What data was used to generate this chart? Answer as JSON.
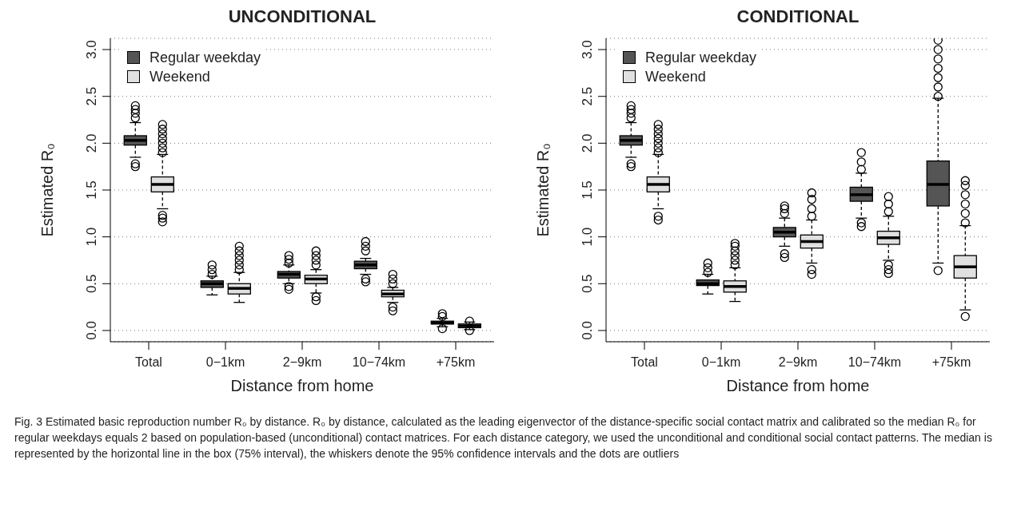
{
  "chart_data": [
    {
      "type": "box",
      "title": "UNCONDITIONAL",
      "xlabel": "Distance from home",
      "ylabel": "Estimated R₀",
      "categories": [
        "Total",
        "0−1km",
        "2−9km",
        "10−74km",
        "+75km"
      ],
      "ylim": [
        -0.12,
        3.12
      ],
      "yticks": [
        {
          "value": 0,
          "label": "0.0"
        },
        0.5,
        {
          "value": 1,
          "label": "1.0"
        },
        1.5,
        {
          "value": 2,
          "label": "2.0"
        },
        2.5,
        {
          "value": 3,
          "label": "3.0"
        }
      ],
      "grid": "y",
      "legend": "top left",
      "annotations": [
        "Fig. 3 Estimated basic reproduction number R₀ by distance. R₀ by distance, calculated as the leading eigenvector of the distance-specific social contact matrix and calibrated so the median R₀ for regular weekdays equals 2 based on population-based (unconditional) contact matrices. For each distance category, we used the unconditional and conditional social contact patterns. The median is represented by the horizontal line in the box (75% interval), the whiskers denote the 95% confidence intervals and the dots are outliers"
      ],
      "series": [
        {
          "name": "Regular weekday",
          "color": "#555555",
          "boxes": [
            {
              "low": 1.85,
              "q1": 1.98,
              "median": 2.03,
              "q3": 2.08,
              "high": 2.22,
              "outliers": [
                1.75,
                1.78,
                2.27,
                2.32,
                2.36,
                2.4
              ]
            },
            {
              "low": 0.38,
              "q1": 0.46,
              "median": 0.5,
              "q3": 0.53,
              "high": 0.58,
              "outliers": [
                0.6,
                0.65,
                0.7
              ]
            },
            {
              "low": 0.5,
              "q1": 0.56,
              "median": 0.6,
              "q3": 0.63,
              "high": 0.7,
              "outliers": [
                0.44,
                0.47,
                0.72,
                0.76,
                0.8
              ]
            },
            {
              "low": 0.6,
              "q1": 0.66,
              "median": 0.7,
              "q3": 0.74,
              "high": 0.77,
              "outliers": [
                0.52,
                0.55,
                0.85,
                0.9,
                0.95
              ]
            },
            {
              "low": 0.04,
              "q1": 0.07,
              "median": 0.08,
              "q3": 0.1,
              "high": 0.13,
              "outliers": [
                0.02,
                0.15,
                0.18
              ]
            }
          ]
        },
        {
          "name": "Weekend",
          "color": "#e0e0e0",
          "boxes": [
            {
              "low": 1.3,
              "q1": 1.48,
              "median": 1.56,
              "q3": 1.64,
              "high": 1.88,
              "outliers": [
                1.16,
                1.2,
                1.23,
                1.9,
                1.95,
                2.0,
                2.05,
                2.1,
                2.15,
                2.2
              ]
            },
            {
              "low": 0.3,
              "q1": 0.39,
              "median": 0.45,
              "q3": 0.5,
              "high": 0.62,
              "outliers": [
                0.65,
                0.7,
                0.75,
                0.8,
                0.85,
                0.9
              ]
            },
            {
              "low": 0.4,
              "q1": 0.5,
              "median": 0.55,
              "q3": 0.59,
              "high": 0.65,
              "outliers": [
                0.32,
                0.36,
                0.7,
                0.75,
                0.8,
                0.85
              ]
            },
            {
              "low": 0.3,
              "q1": 0.36,
              "median": 0.39,
              "q3": 0.43,
              "high": 0.46,
              "outliers": [
                0.21,
                0.25,
                0.5,
                0.55,
                0.6
              ]
            },
            {
              "low": 0.01,
              "q1": 0.03,
              "median": 0.05,
              "q3": 0.07,
              "high": 0.09,
              "outliers": [
                0.0,
                0.1
              ]
            }
          ]
        }
      ]
    },
    {
      "type": "box",
      "title": "CONDITIONAL",
      "xlabel": "Distance from home",
      "ylabel": "Estimated R₀",
      "categories": [
        "Total",
        "0−1km",
        "2−9km",
        "10−74km",
        "+75km"
      ],
      "ylim": [
        -0.12,
        3.12
      ],
      "yticks": [
        {
          "value": 0,
          "label": "0.0"
        },
        0.5,
        {
          "value": 1,
          "label": "1.0"
        },
        1.5,
        {
          "value": 2,
          "label": "2.0"
        },
        2.5,
        {
          "value": 3,
          "label": "3.0"
        }
      ],
      "grid": "y",
      "legend": "top left",
      "series": [
        {
          "name": "Regular weekday",
          "color": "#555555",
          "boxes": [
            {
              "low": 1.85,
              "q1": 1.98,
              "median": 2.03,
              "q3": 2.08,
              "high": 2.22,
              "outliers": [
                1.75,
                1.78,
                2.27,
                2.32,
                2.36,
                2.4
              ]
            },
            {
              "low": 0.39,
              "q1": 0.48,
              "median": 0.5,
              "q3": 0.54,
              "high": 0.6,
              "outliers": [
                0.62,
                0.67,
                0.72
              ]
            },
            {
              "low": 0.9,
              "q1": 1.0,
              "median": 1.05,
              "q3": 1.1,
              "high": 1.2,
              "outliers": [
                0.78,
                0.82,
                1.25,
                1.3,
                1.33
              ]
            },
            {
              "low": 1.2,
              "q1": 1.38,
              "median": 1.45,
              "q3": 1.53,
              "high": 1.68,
              "outliers": [
                1.11,
                1.15,
                1.72,
                1.8,
                1.9
              ]
            },
            {
              "low": 0.72,
              "q1": 1.33,
              "median": 1.56,
              "q3": 1.81,
              "high": 2.48,
              "outliers": [
                0.64,
                2.5,
                2.6,
                2.7,
                2.8,
                2.9,
                3.0,
                3.1
              ]
            }
          ]
        },
        {
          "name": "Weekend",
          "color": "#e0e0e0",
          "boxes": [
            {
              "low": 1.3,
              "q1": 1.48,
              "median": 1.56,
              "q3": 1.64,
              "high": 1.88,
              "outliers": [
                1.18,
                1.22,
                1.9,
                1.95,
                2.0,
                2.05,
                2.1,
                2.15,
                2.2
              ]
            },
            {
              "low": 0.31,
              "q1": 0.41,
              "median": 0.47,
              "q3": 0.53,
              "high": 0.67,
              "outliers": [
                0.7,
                0.75,
                0.8,
                0.85,
                0.9,
                0.93
              ]
            },
            {
              "low": 0.72,
              "q1": 0.88,
              "median": 0.95,
              "q3": 1.02,
              "high": 1.18,
              "outliers": [
                0.6,
                0.65,
                1.22,
                1.3,
                1.4,
                1.47
              ]
            },
            {
              "low": 0.75,
              "q1": 0.92,
              "median": 0.99,
              "q3": 1.06,
              "high": 1.22,
              "outliers": [
                0.61,
                0.65,
                0.7,
                1.27,
                1.35,
                1.43
              ]
            },
            {
              "low": 0.22,
              "q1": 0.56,
              "median": 0.68,
              "q3": 0.8,
              "high": 1.12,
              "outliers": [
                0.15,
                1.15,
                1.25,
                1.35,
                1.45,
                1.55,
                1.6
              ]
            }
          ]
        }
      ]
    }
  ]
}
